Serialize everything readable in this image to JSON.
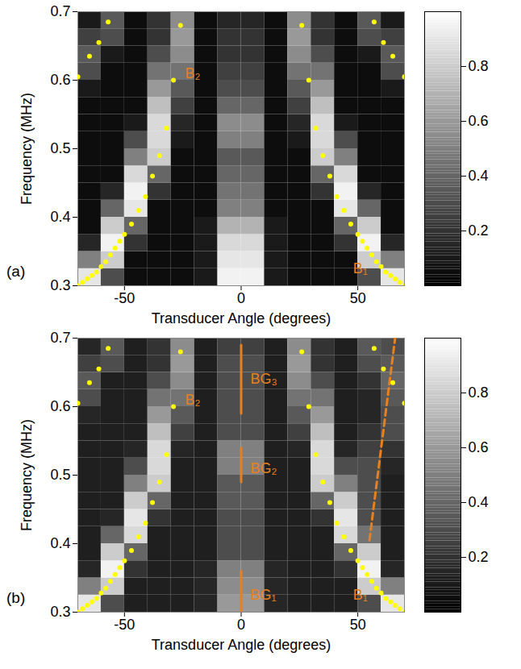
{
  "chart_data": [
    {
      "type": "heatmap",
      "panel_label": "(a)",
      "x_label": "Transducer Angle (degrees)",
      "y_label": "Frequency (MHz)",
      "xlim": [
        -70,
        70
      ],
      "xticks": [
        -50,
        0,
        50
      ],
      "ylim": [
        0.3,
        0.7
      ],
      "yticks": [
        0.3,
        0.4,
        0.5,
        0.6,
        0.7
      ],
      "x_edges": [
        -70,
        -60,
        -50,
        -40,
        -30,
        -20,
        -10,
        0,
        10,
        20,
        30,
        40,
        50,
        60,
        70
      ],
      "y_edges": [
        0.3,
        0.325,
        0.35,
        0.375,
        0.4,
        0.425,
        0.45,
        0.475,
        0.5,
        0.525,
        0.55,
        0.575,
        0.6,
        0.625,
        0.65,
        0.675,
        0.7
      ],
      "cells": [
        [
          0.9,
          0.3,
          0.05,
          0.05,
          0.05,
          0.1,
          0.95,
          0.95,
          0.1,
          0.05,
          0.05,
          0.05,
          0.3,
          0.9
        ],
        [
          0.5,
          0.8,
          0.05,
          0.05,
          0.05,
          0.1,
          0.9,
          0.9,
          0.1,
          0.05,
          0.05,
          0.05,
          0.8,
          0.5
        ],
        [
          0.15,
          0.95,
          0.2,
          0.05,
          0.05,
          0.1,
          0.85,
          0.85,
          0.1,
          0.05,
          0.05,
          0.2,
          0.95,
          0.15
        ],
        [
          0.05,
          0.8,
          0.4,
          0.05,
          0.05,
          0.1,
          0.7,
          0.7,
          0.1,
          0.05,
          0.05,
          0.4,
          0.8,
          0.05
        ],
        [
          0.05,
          0.4,
          0.9,
          0.05,
          0.05,
          0.05,
          0.5,
          0.5,
          0.05,
          0.05,
          0.05,
          0.9,
          0.4,
          0.05
        ],
        [
          0.05,
          0.15,
          0.95,
          0.2,
          0.05,
          0.05,
          0.45,
          0.45,
          0.05,
          0.05,
          0.2,
          0.95,
          0.15,
          0.05
        ],
        [
          0.05,
          0.05,
          0.85,
          0.4,
          0.05,
          0.05,
          0.4,
          0.4,
          0.05,
          0.05,
          0.4,
          0.85,
          0.05,
          0.05
        ],
        [
          0.05,
          0.05,
          0.5,
          0.8,
          0.05,
          0.05,
          0.35,
          0.35,
          0.05,
          0.05,
          0.8,
          0.5,
          0.05,
          0.05
        ],
        [
          0.05,
          0.05,
          0.3,
          0.85,
          0.1,
          0.05,
          0.5,
          0.5,
          0.05,
          0.1,
          0.85,
          0.3,
          0.05,
          0.05
        ],
        [
          0.05,
          0.05,
          0.1,
          0.85,
          0.15,
          0.05,
          0.55,
          0.55,
          0.05,
          0.15,
          0.85,
          0.1,
          0.05,
          0.05
        ],
        [
          0.05,
          0.05,
          0.05,
          0.75,
          0.25,
          0.05,
          0.4,
          0.4,
          0.05,
          0.25,
          0.75,
          0.05,
          0.05,
          0.05
        ],
        [
          0.1,
          0.05,
          0.05,
          0.6,
          0.35,
          0.05,
          0.3,
          0.3,
          0.05,
          0.35,
          0.6,
          0.05,
          0.05,
          0.1
        ],
        [
          0.3,
          0.05,
          0.05,
          0.45,
          0.45,
          0.05,
          0.25,
          0.25,
          0.05,
          0.45,
          0.45,
          0.05,
          0.05,
          0.3
        ],
        [
          0.35,
          0.1,
          0.05,
          0.3,
          0.55,
          0.05,
          0.2,
          0.2,
          0.05,
          0.55,
          0.3,
          0.05,
          0.1,
          0.35
        ],
        [
          0.25,
          0.3,
          0.05,
          0.2,
          0.6,
          0.05,
          0.2,
          0.2,
          0.05,
          0.6,
          0.2,
          0.05,
          0.3,
          0.25
        ],
        [
          0.1,
          0.35,
          0.05,
          0.2,
          0.55,
          0.05,
          0.15,
          0.15,
          0.05,
          0.55,
          0.2,
          0.05,
          0.35,
          0.1
        ]
      ],
      "clim": [
        0,
        1
      ],
      "cticks": [
        0.2,
        0.4,
        0.6,
        0.8
      ],
      "curves": [
        {
          "color": "#ffff00",
          "marker": "dot",
          "x": [
            70,
            68,
            66,
            64,
            62,
            60,
            58,
            56,
            54,
            52,
            50,
            47,
            44,
            41,
            38,
            35,
            32,
            29,
            26
          ],
          "y": [
            0.3,
            0.305,
            0.31,
            0.315,
            0.32,
            0.328,
            0.335,
            0.345,
            0.355,
            0.365,
            0.375,
            0.39,
            0.41,
            0.43,
            0.46,
            0.49,
            0.53,
            0.6,
            0.68
          ]
        },
        {
          "color": "#ffff00",
          "marker": "dot",
          "x": [
            -70,
            -68,
            -66,
            -64,
            -62,
            -60,
            -58,
            -56,
            -54,
            -52,
            -50,
            -47,
            -44,
            -41,
            -38,
            -35,
            -32,
            -29,
            -26
          ],
          "y": [
            0.3,
            0.305,
            0.31,
            0.315,
            0.32,
            0.328,
            0.335,
            0.345,
            0.355,
            0.365,
            0.375,
            0.39,
            0.41,
            0.43,
            0.46,
            0.49,
            0.53,
            0.6,
            0.68
          ]
        },
        {
          "color": "#ffff00",
          "marker": "dot",
          "x": [
            70,
            65,
            61,
            57
          ],
          "y": [
            0.605,
            0.635,
            0.655,
            0.685
          ]
        },
        {
          "color": "#ffff00",
          "marker": "dot",
          "x": [
            -70,
            -65,
            -61,
            -57
          ],
          "y": [
            0.605,
            0.635,
            0.655,
            0.685
          ]
        }
      ],
      "annotations": [
        {
          "text": "B₂",
          "x": -24,
          "y": 0.61,
          "color": "#e8801e"
        },
        {
          "text": "B₁",
          "x": 48,
          "y": 0.325,
          "color": "#e8801e"
        }
      ],
      "lines": []
    },
    {
      "type": "heatmap",
      "panel_label": "(b)",
      "x_label": "Transducer Angle (degrees)",
      "y_label": "Frequency (MHz)",
      "xlim": [
        -70,
        70
      ],
      "xticks": [
        -50,
        0,
        50
      ],
      "ylim": [
        0.3,
        0.7
      ],
      "yticks": [
        0.3,
        0.4,
        0.5,
        0.6,
        0.7
      ],
      "x_edges": [
        -70,
        -60,
        -50,
        -40,
        -30,
        -20,
        -10,
        0,
        10,
        20,
        30,
        40,
        50,
        60,
        70
      ],
      "y_edges": [
        0.3,
        0.325,
        0.35,
        0.375,
        0.4,
        0.425,
        0.45,
        0.475,
        0.5,
        0.525,
        0.55,
        0.575,
        0.6,
        0.625,
        0.65,
        0.675,
        0.7
      ],
      "cells": [
        [
          0.9,
          0.3,
          0.12,
          0.12,
          0.12,
          0.15,
          0.6,
          0.6,
          0.15,
          0.12,
          0.12,
          0.12,
          0.3,
          0.9
        ],
        [
          0.5,
          0.8,
          0.12,
          0.12,
          0.12,
          0.15,
          0.55,
          0.55,
          0.15,
          0.12,
          0.12,
          0.12,
          0.8,
          0.5
        ],
        [
          0.15,
          0.95,
          0.2,
          0.12,
          0.12,
          0.15,
          0.5,
          0.5,
          0.15,
          0.12,
          0.12,
          0.2,
          0.95,
          0.15
        ],
        [
          0.12,
          0.8,
          0.4,
          0.12,
          0.12,
          0.12,
          0.3,
          0.3,
          0.12,
          0.12,
          0.12,
          0.4,
          0.8,
          0.12
        ],
        [
          0.12,
          0.4,
          0.85,
          0.12,
          0.12,
          0.12,
          0.3,
          0.3,
          0.12,
          0.12,
          0.12,
          0.85,
          0.45,
          0.12
        ],
        [
          0.12,
          0.15,
          0.9,
          0.2,
          0.12,
          0.12,
          0.3,
          0.3,
          0.12,
          0.12,
          0.2,
          0.9,
          0.3,
          0.12
        ],
        [
          0.12,
          0.12,
          0.8,
          0.4,
          0.12,
          0.12,
          0.35,
          0.35,
          0.12,
          0.12,
          0.4,
          0.8,
          0.3,
          0.12
        ],
        [
          0.12,
          0.12,
          0.5,
          0.8,
          0.12,
          0.12,
          0.35,
          0.35,
          0.12,
          0.12,
          0.8,
          0.5,
          0.3,
          0.12
        ],
        [
          0.12,
          0.12,
          0.3,
          0.85,
          0.12,
          0.12,
          0.5,
          0.5,
          0.12,
          0.12,
          0.85,
          0.3,
          0.3,
          0.15
        ],
        [
          0.12,
          0.12,
          0.15,
          0.85,
          0.15,
          0.12,
          0.5,
          0.5,
          0.12,
          0.15,
          0.85,
          0.15,
          0.25,
          0.2
        ],
        [
          0.12,
          0.12,
          0.12,
          0.75,
          0.25,
          0.12,
          0.3,
          0.3,
          0.12,
          0.25,
          0.75,
          0.12,
          0.2,
          0.3
        ],
        [
          0.15,
          0.12,
          0.12,
          0.6,
          0.35,
          0.12,
          0.3,
          0.3,
          0.12,
          0.35,
          0.6,
          0.12,
          0.15,
          0.3
        ],
        [
          0.3,
          0.12,
          0.12,
          0.45,
          0.45,
          0.12,
          0.3,
          0.3,
          0.12,
          0.45,
          0.45,
          0.12,
          0.15,
          0.35
        ],
        [
          0.35,
          0.12,
          0.12,
          0.3,
          0.55,
          0.12,
          0.3,
          0.3,
          0.12,
          0.55,
          0.3,
          0.12,
          0.2,
          0.4
        ],
        [
          0.25,
          0.3,
          0.12,
          0.2,
          0.6,
          0.12,
          0.3,
          0.3,
          0.12,
          0.6,
          0.2,
          0.12,
          0.3,
          0.35
        ],
        [
          0.15,
          0.35,
          0.12,
          0.2,
          0.55,
          0.12,
          0.25,
          0.25,
          0.12,
          0.55,
          0.2,
          0.12,
          0.35,
          0.3
        ]
      ],
      "clim": [
        0,
        1
      ],
      "cticks": [
        0.2,
        0.4,
        0.6,
        0.8
      ],
      "curves": [
        {
          "color": "#ffff00",
          "marker": "dot",
          "x": [
            70,
            68,
            66,
            64,
            62,
            60,
            58,
            56,
            54,
            52,
            50,
            47,
            44,
            41,
            38,
            35,
            32,
            29,
            26
          ],
          "y": [
            0.3,
            0.305,
            0.31,
            0.315,
            0.32,
            0.328,
            0.335,
            0.345,
            0.355,
            0.365,
            0.375,
            0.39,
            0.41,
            0.43,
            0.46,
            0.49,
            0.53,
            0.6,
            0.68
          ]
        },
        {
          "color": "#ffff00",
          "marker": "dot",
          "x": [
            -70,
            -68,
            -66,
            -64,
            -62,
            -60,
            -58,
            -56,
            -54,
            -52,
            -50,
            -47,
            -44,
            -41,
            -38,
            -35,
            -32,
            -29,
            -26
          ],
          "y": [
            0.3,
            0.305,
            0.31,
            0.315,
            0.32,
            0.328,
            0.335,
            0.345,
            0.355,
            0.365,
            0.375,
            0.39,
            0.41,
            0.43,
            0.46,
            0.49,
            0.53,
            0.6,
            0.68
          ]
        },
        {
          "color": "#ffff00",
          "marker": "dot",
          "x": [
            70,
            65,
            61,
            57
          ],
          "y": [
            0.605,
            0.635,
            0.655,
            0.685
          ]
        },
        {
          "color": "#ffff00",
          "marker": "dot",
          "x": [
            -70,
            -65,
            -61,
            -57
          ],
          "y": [
            0.605,
            0.635,
            0.655,
            0.685
          ]
        }
      ],
      "annotations": [
        {
          "text": "B₂",
          "x": -24,
          "y": 0.61,
          "color": "#e8801e"
        },
        {
          "text": "B₁",
          "x": 48,
          "y": 0.325,
          "color": "#e8801e"
        },
        {
          "text": "BG₃",
          "x": 4,
          "y": 0.64,
          "color": "#e8801e"
        },
        {
          "text": "BG₂",
          "x": 4,
          "y": 0.51,
          "color": "#e8801e"
        },
        {
          "text": "BG₁",
          "x": 4,
          "y": 0.325,
          "color": "#e8801e"
        }
      ],
      "lines": [
        {
          "x": [
            0,
            0
          ],
          "y": [
            0.59,
            0.69
          ],
          "color": "#e8801e",
          "line_style": "solid"
        },
        {
          "x": [
            0,
            0
          ],
          "y": [
            0.49,
            0.54
          ],
          "color": "#e8801e",
          "line_style": "solid"
        },
        {
          "x": [
            0,
            0
          ],
          "y": [
            0.3,
            0.36
          ],
          "color": "#e8801e",
          "line_style": "solid"
        },
        {
          "x": [
            55,
            66
          ],
          "y": [
            0.405,
            0.7
          ],
          "color": "#e8801e",
          "line_style": "dashed"
        }
      ]
    }
  ]
}
